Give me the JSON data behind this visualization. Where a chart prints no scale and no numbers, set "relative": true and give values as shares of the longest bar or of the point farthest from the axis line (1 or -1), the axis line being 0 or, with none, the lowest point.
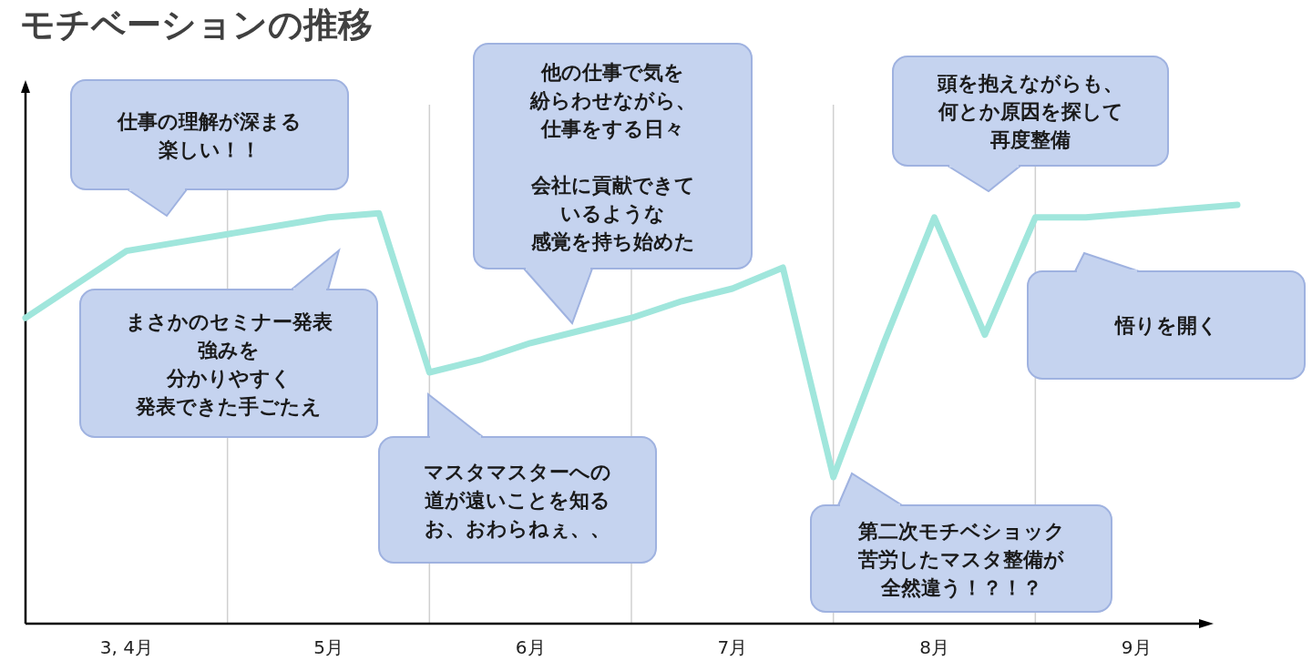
{
  "chart_data": {
    "type": "line",
    "title": "モチベーションの推移",
    "relative": true,
    "categories": [
      null,
      null,
      "3, 4月",
      null,
      null,
      null,
      "5月",
      null,
      null,
      null,
      "6月",
      null,
      null,
      null,
      "7月",
      null,
      null,
      null,
      "8月",
      null,
      null,
      null,
      "9月",
      null,
      null
    ],
    "series": [
      {
        "color": "#a0e6dc",
        "values": [
          0.73,
          0.81,
          0.89,
          0.91,
          0.93,
          0.95,
          0.97,
          0.98,
          0.6,
          0.63,
          0.67,
          0.7,
          0.73,
          0.77,
          0.8,
          0.85,
          0.35,
          0.67,
          0.97,
          0.69,
          0.97,
          0.97,
          0.98,
          0.99,
          1.0
        ]
      }
    ],
    "annotations": [
      "仕事の理解が深まる楽しい！！",
      "まさかのセミナー発表強みを分かりやすく発表できた手ごたえ",
      "マスタマスターへの道が遠いことを知るお、おわらねぇ、、",
      "他の仕事で気を紛らわせながら、仕事をする日々会社に貢献できているような感覚を持ち始めた",
      "頭を抱えながらも、何とか原因を探して再度整備",
      "第二次モチベショック苦労したマスタ整備が全然違う！？！？",
      "悟りを開く"
    ],
    "grid": "x",
    "marker": "none",
    "line_style": "solid"
  }
}
